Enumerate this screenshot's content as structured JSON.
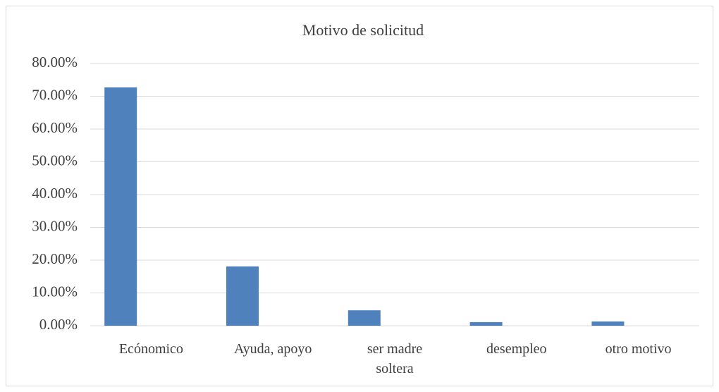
{
  "chart_data": {
    "type": "bar",
    "title": "Motivo de solicitud",
    "categories": [
      "Ecónomico",
      "Ayuda, apoyo",
      "ser madre soltera",
      "desempleo",
      "otro motivo"
    ],
    "values": [
      72.7,
      18.1,
      4.7,
      1.1,
      1.3
    ],
    "color": "#4f81bd",
    "ylim": [
      0,
      80
    ],
    "yticks": [
      {
        "value": 0,
        "label": "0.00%"
      },
      {
        "value": 10,
        "label": "10.00%"
      },
      {
        "value": 20,
        "label": "20.00%"
      },
      {
        "value": 30,
        "label": "30.00%"
      },
      {
        "value": 40,
        "label": "40.00%"
      },
      {
        "value": 50,
        "label": "50.00%"
      },
      {
        "value": 60,
        "label": "60.00%"
      },
      {
        "value": 70,
        "label": "70.00%"
      },
      {
        "value": 80,
        "label": "80.00%"
      }
    ],
    "grid": true
  }
}
